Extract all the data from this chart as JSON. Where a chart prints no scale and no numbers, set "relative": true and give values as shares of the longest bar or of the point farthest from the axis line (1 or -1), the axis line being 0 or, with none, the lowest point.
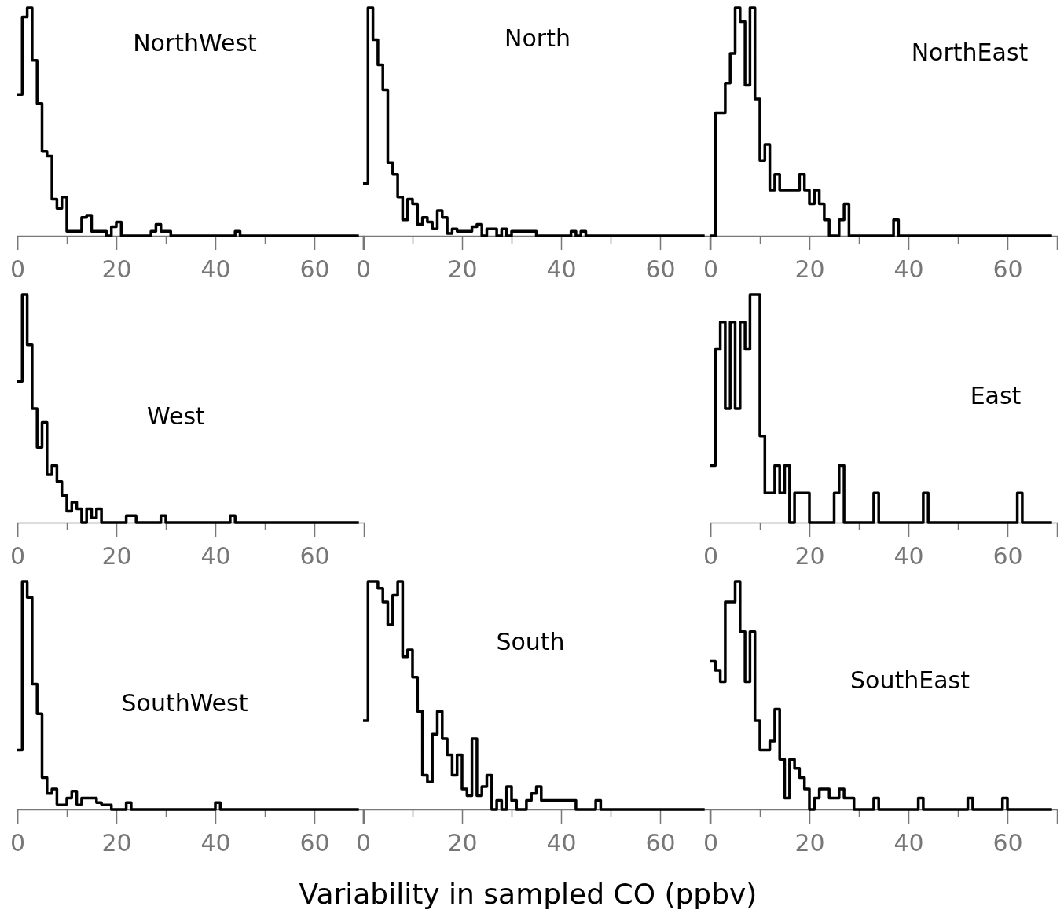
{
  "chart_data": [
    {
      "type": "step",
      "title": "NorthWest",
      "relative": true,
      "color": "#000000",
      "xlim": [
        0,
        70
      ],
      "xticks": [
        0,
        {
          "value": 10,
          "label": null
        },
        20,
        {
          "value": 30,
          "label": null
        },
        40,
        {
          "value": 50,
          "label": null
        },
        60
      ],
      "x": [
        0,
        1,
        2,
        3,
        4,
        5,
        6,
        7,
        8,
        9,
        10,
        11,
        12,
        13,
        14,
        15,
        16,
        17,
        18,
        19,
        20,
        21,
        22,
        23,
        24,
        25,
        26,
        27,
        28,
        29,
        30,
        31,
        32,
        33,
        34,
        35,
        36,
        37,
        38,
        39,
        40,
        41,
        42,
        43,
        44,
        45,
        46,
        47,
        48,
        49,
        50,
        51,
        52,
        53,
        54,
        55,
        56,
        57,
        58,
        59,
        60,
        61,
        62,
        63,
        64,
        65,
        66,
        67,
        68,
        69
      ],
      "values": [
        0.62,
        0.96,
        1,
        0.77,
        0.58,
        0.37,
        0.35,
        0.16,
        0.12,
        0.17,
        0.02,
        0.02,
        0.02,
        0.08,
        0.09,
        0.02,
        0.02,
        0.02,
        0,
        0.04,
        0.06,
        0,
        0,
        0,
        0,
        0,
        0,
        0.02,
        0.05,
        0.02,
        0.02,
        0,
        0,
        0,
        0,
        0,
        0,
        0,
        0,
        0,
        0,
        0,
        0,
        0,
        0.02,
        0,
        0,
        0,
        0,
        0,
        0,
        0,
        0,
        0,
        0,
        0,
        0,
        0,
        0,
        0,
        0,
        0,
        0,
        0,
        0,
        0,
        0,
        0,
        0,
        0
      ]
    },
    {
      "type": "step",
      "title": "North",
      "relative": true,
      "color": "#000000",
      "xlim": [
        0,
        70
      ],
      "xticks": [
        0,
        {
          "value": 10,
          "label": null
        },
        20,
        {
          "value": 30,
          "label": null
        },
        40,
        {
          "value": 50,
          "label": null
        },
        60
      ],
      "x": [
        0,
        1,
        2,
        3,
        4,
        5,
        6,
        7,
        8,
        9,
        10,
        11,
        12,
        13,
        14,
        15,
        16,
        17,
        18,
        19,
        20,
        21,
        22,
        23,
        24,
        25,
        26,
        27,
        28,
        29,
        30,
        31,
        32,
        33,
        34,
        35,
        36,
        37,
        38,
        39,
        40,
        41,
        42,
        43,
        44,
        45,
        46,
        47,
        48,
        49,
        50,
        51,
        52,
        53,
        54,
        55,
        56,
        57,
        58,
        59,
        60,
        61,
        62,
        63,
        64,
        65,
        66,
        67,
        68,
        69
      ],
      "values": [
        0.23,
        1,
        0.86,
        0.75,
        0.64,
        0.32,
        0.27,
        0.17,
        0.07,
        0.16,
        0.14,
        0.05,
        0.08,
        0.06,
        0.03,
        0.11,
        0.08,
        0.01,
        0.03,
        0.02,
        0.02,
        0.02,
        0.04,
        0.05,
        0,
        0.03,
        0.03,
        0,
        0.03,
        0,
        0.02,
        0.02,
        0.02,
        0.02,
        0.02,
        0,
        0,
        0,
        0,
        0,
        0,
        0,
        0.02,
        0,
        0.02,
        0,
        0,
        0,
        0,
        0,
        0,
        0,
        0,
        0,
        0,
        0,
        0,
        0,
        0,
        0,
        0,
        0,
        0,
        0,
        0,
        0,
        0,
        0,
        0,
        0
      ]
    },
    {
      "type": "step",
      "title": "NorthEast",
      "relative": true,
      "color": "#000000",
      "xlim": [
        0,
        70
      ],
      "xticks": [
        0,
        {
          "value": 10,
          "label": null
        },
        20,
        {
          "value": 30,
          "label": null
        },
        40,
        {
          "value": 50,
          "label": null
        },
        60
      ],
      "x": [
        0,
        1,
        2,
        3,
        4,
        5,
        6,
        7,
        8,
        9,
        10,
        11,
        12,
        13,
        14,
        15,
        16,
        17,
        18,
        19,
        20,
        21,
        22,
        23,
        24,
        25,
        26,
        27,
        28,
        29,
        30,
        31,
        32,
        33,
        34,
        35,
        36,
        37,
        38,
        39,
        40,
        41,
        42,
        43,
        44,
        45,
        46,
        47,
        48,
        49,
        50,
        51,
        52,
        53,
        54,
        55,
        56,
        57,
        58,
        59,
        60,
        61,
        62,
        63,
        64,
        65,
        66,
        67,
        68,
        69
      ],
      "values": [
        0,
        0.54,
        0.54,
        0.67,
        0.8,
        1,
        0.94,
        0.66,
        1,
        0.6,
        0.33,
        0.4,
        0.2,
        0.27,
        0.2,
        0.2,
        0.2,
        0.2,
        0.27,
        0.2,
        0.14,
        0.2,
        0.14,
        0.07,
        0,
        0,
        0.07,
        0.14,
        0,
        0,
        0,
        0,
        0,
        0,
        0,
        0,
        0,
        0.07,
        0,
        0,
        0,
        0,
        0,
        0,
        0,
        0,
        0,
        0,
        0,
        0,
        0,
        0,
        0,
        0,
        0,
        0,
        0,
        0,
        0,
        0,
        0,
        0,
        0,
        0,
        0,
        0,
        0,
        0,
        0,
        0
      ]
    },
    {
      "type": "step",
      "title": "West",
      "relative": true,
      "color": "#000000",
      "xlim": [
        0,
        70
      ],
      "xticks": [
        0,
        {
          "value": 10,
          "label": null
        },
        20,
        {
          "value": 30,
          "label": null
        },
        40,
        {
          "value": 50,
          "label": null
        },
        60
      ],
      "x": [
        0,
        1,
        2,
        3,
        4,
        5,
        6,
        7,
        8,
        9,
        10,
        11,
        12,
        13,
        14,
        15,
        16,
        17,
        18,
        19,
        20,
        21,
        22,
        23,
        24,
        25,
        26,
        27,
        28,
        29,
        30,
        31,
        32,
        33,
        34,
        35,
        36,
        37,
        38,
        39,
        40,
        41,
        42,
        43,
        44,
        45,
        46,
        47,
        48,
        49,
        50,
        51,
        52,
        53,
        54,
        55,
        56,
        57,
        58,
        59,
        60,
        61,
        62,
        63,
        64,
        65,
        66,
        67,
        68,
        69
      ],
      "values": [
        0.62,
        1,
        0.78,
        0.5,
        0.33,
        0.44,
        0.21,
        0.25,
        0.18,
        0.12,
        0.05,
        0.09,
        0.06,
        0,
        0.06,
        0.02,
        0.06,
        0,
        0,
        0,
        0,
        0,
        0.03,
        0.03,
        0,
        0,
        0,
        0,
        0,
        0.03,
        0,
        0,
        0,
        0,
        0,
        0,
        0,
        0,
        0,
        0,
        0,
        0,
        0,
        0.03,
        0,
        0,
        0,
        0,
        0,
        0,
        0,
        0,
        0,
        0,
        0,
        0,
        0,
        0,
        0,
        0,
        0,
        0,
        0,
        0,
        0,
        0,
        0,
        0,
        0,
        0
      ]
    },
    {
      "type": "step",
      "title": "East",
      "relative": true,
      "color": "#000000",
      "xlim": [
        0,
        70
      ],
      "xticks": [
        0,
        {
          "value": 10,
          "label": null
        },
        20,
        {
          "value": 30,
          "label": null
        },
        40,
        {
          "value": 50,
          "label": null
        },
        60
      ],
      "x": [
        0,
        1,
        2,
        3,
        4,
        5,
        6,
        7,
        8,
        9,
        10,
        11,
        12,
        13,
        14,
        15,
        16,
        17,
        18,
        19,
        20,
        21,
        22,
        23,
        24,
        25,
        26,
        27,
        28,
        29,
        30,
        31,
        32,
        33,
        34,
        35,
        36,
        37,
        38,
        39,
        40,
        41,
        42,
        43,
        44,
        45,
        46,
        47,
        48,
        49,
        50,
        51,
        52,
        53,
        54,
        55,
        56,
        57,
        58,
        59,
        60,
        61,
        62,
        63,
        64,
        65,
        66,
        67,
        68,
        69
      ],
      "values": [
        0.25,
        0.76,
        0.88,
        0.5,
        0.88,
        0.5,
        0.88,
        0.76,
        1,
        1,
        0.38,
        0.13,
        0.13,
        0.25,
        0.13,
        0.25,
        0,
        0.13,
        0.13,
        0.13,
        0,
        0,
        0,
        0,
        0,
        0.13,
        0.25,
        0,
        0,
        0,
        0,
        0,
        0,
        0.13,
        0,
        0,
        0,
        0,
        0,
        0,
        0,
        0,
        0,
        0.13,
        0,
        0,
        0,
        0,
        0,
        0,
        0,
        0,
        0,
        0,
        0,
        0,
        0,
        0,
        0,
        0,
        0,
        0,
        0.13,
        0,
        0,
        0,
        0,
        0,
        0,
        0
      ]
    },
    {
      "type": "step",
      "title": "SouthWest",
      "relative": true,
      "color": "#000000",
      "xlim": [
        0,
        70
      ],
      "xticks": [
        0,
        {
          "value": 10,
          "label": null
        },
        20,
        {
          "value": 30,
          "label": null
        },
        40,
        {
          "value": 50,
          "label": null
        },
        60
      ],
      "x": [
        0,
        1,
        2,
        3,
        4,
        5,
        6,
        7,
        8,
        9,
        10,
        11,
        12,
        13,
        14,
        15,
        16,
        17,
        18,
        19,
        20,
        21,
        22,
        23,
        24,
        25,
        26,
        27,
        28,
        29,
        30,
        31,
        32,
        33,
        34,
        35,
        36,
        37,
        38,
        39,
        40,
        41,
        42,
        43,
        44,
        45,
        46,
        47,
        48,
        49,
        50,
        51,
        52,
        53,
        54,
        55,
        56,
        57,
        58,
        59,
        60,
        61,
        62,
        63,
        64,
        65,
        66,
        67,
        68,
        69
      ],
      "values": [
        0.26,
        1,
        0.93,
        0.55,
        0.42,
        0.14,
        0.07,
        0.09,
        0.02,
        0.02,
        0.05,
        0.08,
        0.02,
        0.05,
        0.05,
        0.05,
        0.03,
        0.02,
        0.02,
        0,
        0,
        0,
        0.03,
        0,
        0,
        0,
        0,
        0,
        0,
        0,
        0,
        0,
        0,
        0,
        0,
        0,
        0,
        0,
        0,
        0,
        0.03,
        0,
        0,
        0,
        0,
        0,
        0,
        0,
        0,
        0,
        0,
        0,
        0,
        0,
        0,
        0,
        0,
        0,
        0,
        0,
        0,
        0,
        0,
        0,
        0,
        0,
        0,
        0,
        0,
        0
      ]
    },
    {
      "type": "step",
      "title": "South",
      "xlabel": "Variability in sampled CO (ppbv)",
      "relative": true,
      "color": "#000000",
      "xlim": [
        0,
        70
      ],
      "xticks": [
        0,
        {
          "value": 10,
          "label": null
        },
        20,
        {
          "value": 30,
          "label": null
        },
        40,
        {
          "value": 50,
          "label": null
        },
        60
      ],
      "x": [
        0,
        1,
        2,
        3,
        4,
        5,
        6,
        7,
        8,
        9,
        10,
        11,
        12,
        13,
        14,
        15,
        16,
        17,
        18,
        19,
        20,
        21,
        22,
        23,
        24,
        25,
        26,
        27,
        28,
        29,
        30,
        31,
        32,
        33,
        34,
        35,
        36,
        37,
        38,
        39,
        40,
        41,
        42,
        43,
        44,
        45,
        46,
        47,
        48,
        49,
        50,
        51,
        52,
        53,
        54,
        55,
        56,
        57,
        58,
        59,
        60,
        61,
        62,
        63,
        64,
        65,
        66,
        67,
        68,
        69
      ],
      "values": [
        0.39,
        1,
        1,
        0.97,
        0.91,
        0.81,
        0.94,
        1,
        0.67,
        0.7,
        0.58,
        0.43,
        0.15,
        0.12,
        0.33,
        0.43,
        0.31,
        0.24,
        0.15,
        0.24,
        0.09,
        0.06,
        0.31,
        0.06,
        0.1,
        0.15,
        0,
        0.04,
        0,
        0.1,
        0.04,
        0,
        0,
        0.04,
        0.07,
        0.1,
        0.04,
        0.04,
        0.04,
        0.04,
        0.04,
        0.04,
        0.04,
        0,
        0,
        0,
        0,
        0.04,
        0,
        0,
        0,
        0,
        0,
        0,
        0,
        0,
        0,
        0,
        0,
        0,
        0,
        0,
        0,
        0,
        0,
        0,
        0,
        0,
        0,
        0
      ]
    },
    {
      "type": "step",
      "title": "SouthEast",
      "relative": true,
      "color": "#000000",
      "xlim": [
        0,
        70
      ],
      "xticks": [
        0,
        {
          "value": 10,
          "label": null
        },
        20,
        {
          "value": 30,
          "label": null
        },
        40,
        {
          "value": 50,
          "label": null
        },
        60
      ],
      "x": [
        0,
        1,
        2,
        3,
        4,
        5,
        6,
        7,
        8,
        9,
        10,
        11,
        12,
        13,
        14,
        15,
        16,
        17,
        18,
        19,
        20,
        21,
        22,
        23,
        24,
        25,
        26,
        27,
        28,
        29,
        30,
        31,
        32,
        33,
        34,
        35,
        36,
        37,
        38,
        39,
        40,
        41,
        42,
        43,
        44,
        45,
        46,
        47,
        48,
        49,
        50,
        51,
        52,
        53,
        54,
        55,
        56,
        57,
        58,
        59,
        60,
        61,
        62,
        63,
        64,
        65,
        66,
        67,
        68,
        69
      ],
      "values": [
        0.65,
        0.61,
        0.56,
        0.91,
        0.91,
        1,
        0.78,
        0.56,
        0.78,
        0.39,
        0.26,
        0.26,
        0.3,
        0.44,
        0.22,
        0.05,
        0.22,
        0.18,
        0.14,
        0.09,
        0,
        0.05,
        0.09,
        0.09,
        0.05,
        0.05,
        0.09,
        0.05,
        0.05,
        0,
        0,
        0,
        0,
        0.05,
        0,
        0,
        0,
        0,
        0,
        0,
        0,
        0,
        0.05,
        0,
        0,
        0,
        0,
        0,
        0,
        0,
        0,
        0,
        0.05,
        0,
        0,
        0,
        0,
        0,
        0,
        0.05,
        0,
        0,
        0,
        0,
        0,
        0,
        0,
        0,
        0,
        0
      ]
    }
  ]
}
